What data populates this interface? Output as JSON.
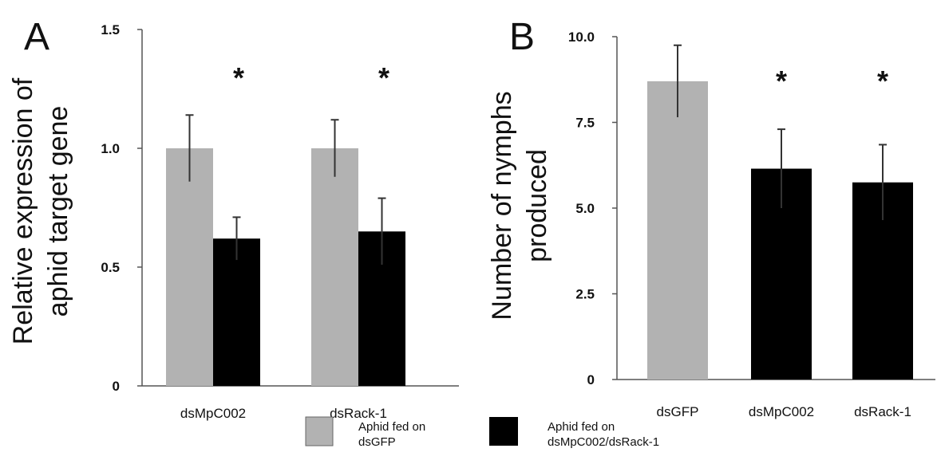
{
  "colors": {
    "control": "#b2b2b2",
    "treated": "#000000"
  },
  "legend": {
    "control_line1": "Aphid fed on",
    "control_line2": "dsGFP",
    "treated_line1": "Aphid fed on",
    "treated_line2": "dsMpC002/dsRack-1"
  },
  "chart_data": [
    {
      "type": "bar",
      "panel_label": "A",
      "ylabel_line1": "Relative expression of",
      "ylabel_line2": "aphid target gene",
      "categories": [
        "dsMpC002",
        "dsRack-1"
      ],
      "ylim": [
        0,
        1.5
      ],
      "yticks": [
        "0",
        "0.5",
        "1.0",
        "1.5"
      ],
      "significance": [
        "*",
        "*"
      ],
      "series": [
        {
          "values": [
            1.0,
            1.0
          ],
          "errors": [
            0.14,
            0.12
          ],
          "color": "control"
        },
        {
          "values": [
            0.62,
            0.65
          ],
          "errors": [
            0.09,
            0.14
          ],
          "color": "treated"
        }
      ]
    },
    {
      "type": "bar",
      "panel_label": "B",
      "ylabel_line1": "Number of nymphs",
      "ylabel_line2": "produced",
      "categories": [
        "dsGFP",
        "dsMpC002",
        "dsRack-1"
      ],
      "ylim": [
        0,
        10
      ],
      "yticks": [
        "0",
        "2.5",
        "5.0",
        "7.5",
        "10.0"
      ],
      "significance": [
        "",
        "*",
        "*"
      ],
      "values": [
        8.7,
        6.15,
        5.75
      ],
      "errors": [
        1.05,
        1.15,
        1.1
      ],
      "bar_colors": [
        "control",
        "treated",
        "treated"
      ]
    }
  ]
}
